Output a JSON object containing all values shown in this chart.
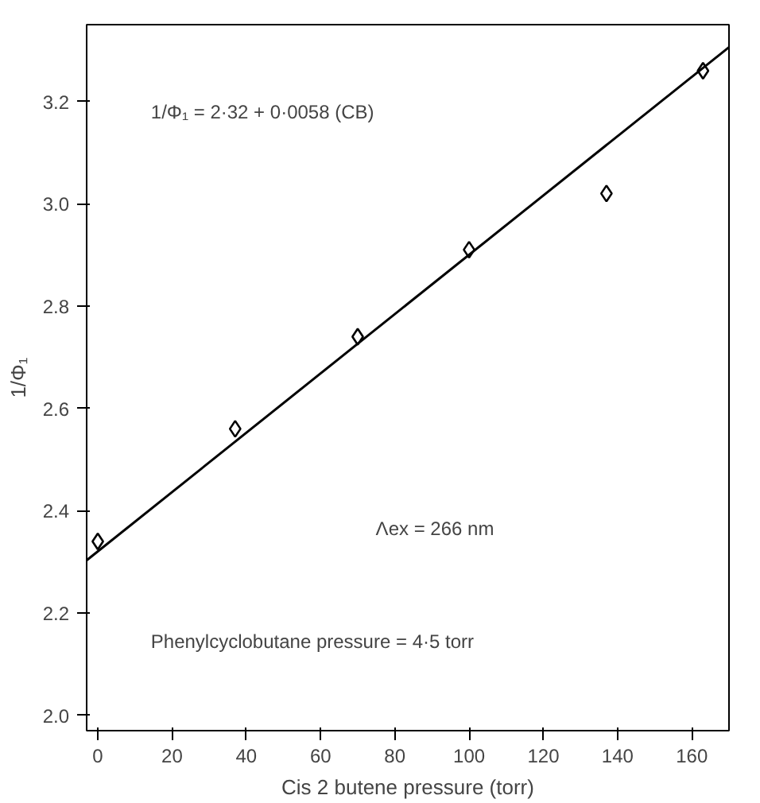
{
  "chart_data": {
    "type": "scatter",
    "xlabel": "Cis 2 butene pressure (torr)",
    "ylabel": "1/Φ₁",
    "series": [
      {
        "type": "scatter",
        "color": "#000000",
        "marker": "diamond",
        "x": [
          0,
          37,
          70,
          100,
          137,
          163
        ],
        "values": [
          2.34,
          2.56,
          2.74,
          2.91,
          3.02,
          3.26
        ]
      },
      {
        "type": "line",
        "color": "#000000",
        "line_style": "solid",
        "x": [
          -3,
          170
        ],
        "values": [
          2.303,
          3.306
        ]
      }
    ],
    "xlim": [
      -3,
      170
    ],
    "ylim": [
      1.97,
      3.35
    ],
    "xticks": [
      0,
      20,
      40,
      60,
      80,
      100,
      120,
      140,
      160
    ],
    "yticks": [
      {
        "value": 2.0,
        "label": "2.0"
      },
      {
        "value": 2.2,
        "label": "2.2"
      },
      {
        "value": 2.4,
        "label": "2.4"
      },
      {
        "value": 2.6,
        "label": "2.6"
      },
      {
        "value": 2.8,
        "label": "2.8"
      },
      {
        "value": 3.0,
        "label": "3.0"
      },
      {
        "value": 3.2,
        "label": "3.2"
      }
    ],
    "grid": false,
    "annotations": [
      "1/Φ₁ = 2·32 + 0·0058 (CB)",
      "Λex = 266 nm",
      "Phenylcyclobutane pressure = 4·5 torr"
    ]
  }
}
